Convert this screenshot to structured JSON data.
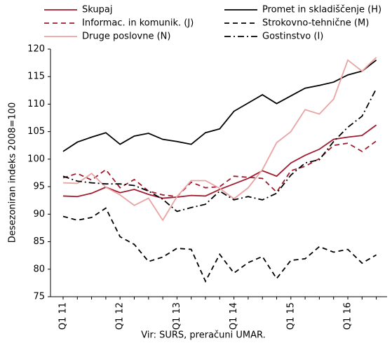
{
  "chart_data": {
    "type": "line",
    "y_label": "Desezoniran indeks 2008=100",
    "source": "Vir:  SURS, preračuni UMAR.",
    "categories": [
      "Q1 11",
      null,
      null,
      null,
      "Q1 12",
      null,
      null,
      null,
      "Q1 13",
      null,
      null,
      null,
      "Q1 14",
      null,
      null,
      null,
      "Q1 15",
      null,
      null,
      null,
      "Q1 16",
      null,
      null
    ],
    "ylim": [
      75,
      120
    ],
    "yticks": [
      75,
      80,
      85,
      90,
      95,
      100,
      105,
      110,
      115,
      120
    ],
    "series": [
      {
        "name": "Skupaj",
        "color": "#a11a2e",
        "dash": "solid",
        "values": [
          93.3,
          93.2,
          93.8,
          94.9,
          93.9,
          94.5,
          93.6,
          92.9,
          93.1,
          93.4,
          93.3,
          94.5,
          95.5,
          96.5,
          97.9,
          96.9,
          99.3,
          100.7,
          101.8,
          103.6,
          104.0,
          104.3,
          106.2
        ]
      },
      {
        "name": "Promet in skladiščenje (H)",
        "color": "#000000",
        "dash": "solid",
        "values": [
          101.4,
          103.1,
          104.0,
          104.8,
          102.7,
          104.2,
          104.7,
          103.6,
          103.2,
          102.7,
          104.8,
          105.5,
          108.7,
          110.2,
          111.7,
          110.1,
          111.5,
          112.9,
          113.4,
          114.0,
          115.3,
          116.0,
          118.0
        ]
      },
      {
        "name": "Informac. in komunik. (J)",
        "color": "#a11a2e",
        "dash": "dashed",
        "values": [
          96.6,
          97.4,
          96.2,
          98.1,
          94.8,
          96.3,
          94.2,
          93.5,
          93.2,
          95.8,
          94.8,
          95.0,
          96.9,
          96.7,
          96.5,
          94.0,
          97.9,
          98.7,
          100.1,
          102.5,
          102.9,
          101.4,
          103.3
        ]
      },
      {
        "name": "Strokovno-tehnične (M)",
        "color": "#000000",
        "dash": "dashed",
        "values": [
          89.6,
          88.9,
          89.4,
          91.1,
          85.9,
          84.5,
          81.4,
          82.2,
          83.8,
          83.6,
          77.8,
          82.7,
          79.3,
          81.2,
          82.3,
          78.3,
          81.6,
          81.9,
          84.1,
          83.1,
          83.6,
          81.1,
          82.6
        ]
      },
      {
        "name": "Druge poslovne (N)",
        "color": "#e9a3a3",
        "dash": "solid",
        "values": [
          95.7,
          95.6,
          97.4,
          94.9,
          93.5,
          91.6,
          92.9,
          88.9,
          93.2,
          96.1,
          96.1,
          94.7,
          92.8,
          94.8,
          98.1,
          103.0,
          105.0,
          109.0,
          108.2,
          110.9,
          118.0,
          116.0,
          118.5
        ]
      },
      {
        "name": "Gostinstvo (I)",
        "color": "#000000",
        "dash": "dashdot",
        "values": [
          96.9,
          96.0,
          95.7,
          95.5,
          95.5,
          95.2,
          94.2,
          92.7,
          90.5,
          91.2,
          91.8,
          94.2,
          92.6,
          93.2,
          92.6,
          93.8,
          97.1,
          99.3,
          99.9,
          103.2,
          105.8,
          107.8,
          112.8
        ]
      }
    ]
  }
}
